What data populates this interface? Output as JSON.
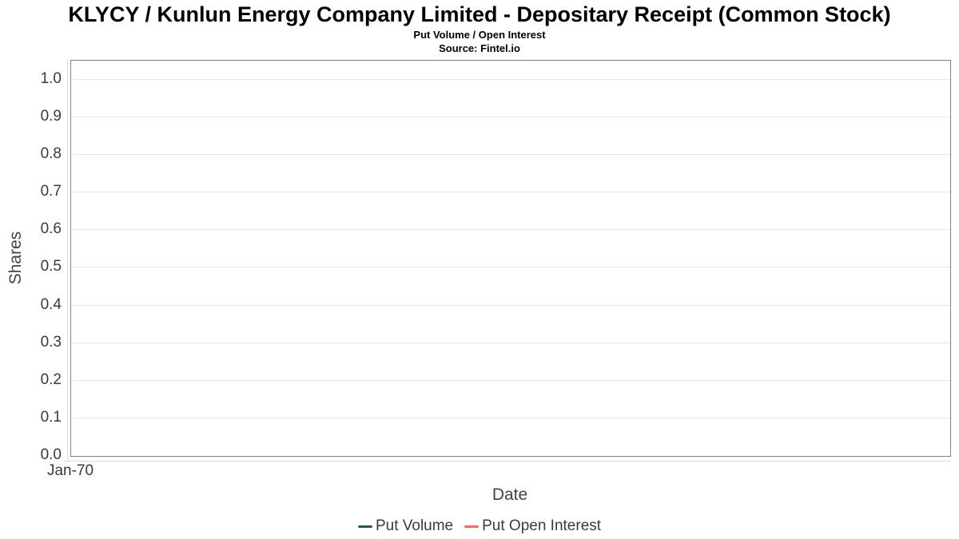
{
  "header": {
    "title": "KLYCY / Kunlun Energy Company Limited - Depositary Receipt (Common Stock)",
    "subtitle": "Put Volume / Open Interest",
    "source": "Source: Fintel.io"
  },
  "chart_data": {
    "type": "line",
    "title": "KLYCY / Kunlun Energy Company Limited - Depositary Receipt (Common Stock)",
    "subtitle": "Put Volume / Open Interest",
    "source": "Source: Fintel.io",
    "xlabel": "Date",
    "ylabel": "Shares",
    "ylim": [
      0.0,
      1.0
    ],
    "yticks": [
      0.0,
      0.1,
      0.2,
      0.3,
      0.4,
      0.5,
      0.6,
      0.7,
      0.8,
      0.9,
      1.0
    ],
    "ytick_labels": [
      "0.0",
      "0.1",
      "0.2",
      "0.3",
      "0.4",
      "0.5",
      "0.6",
      "0.7",
      "0.8",
      "0.9",
      "1.0"
    ],
    "xtick_labels": [
      "Jan-70"
    ],
    "grid": true,
    "legend_position": "bottom",
    "series": [
      {
        "name": "Put Volume",
        "color": "#2d5c34",
        "x": [],
        "values": []
      },
      {
        "name": "Put Open Interest",
        "color": "#f9686b",
        "x": [],
        "values": []
      }
    ]
  },
  "colors": {
    "title_text": "#000000",
    "tick_text": "#3a3a3a",
    "axis_title_text": "#444444",
    "plot_border": "#808080",
    "axis_line": "#d9d9d9",
    "gridline": "#e7e7e7",
    "put_volume": "#2d5c34",
    "put_open_interest": "#f9686b"
  }
}
